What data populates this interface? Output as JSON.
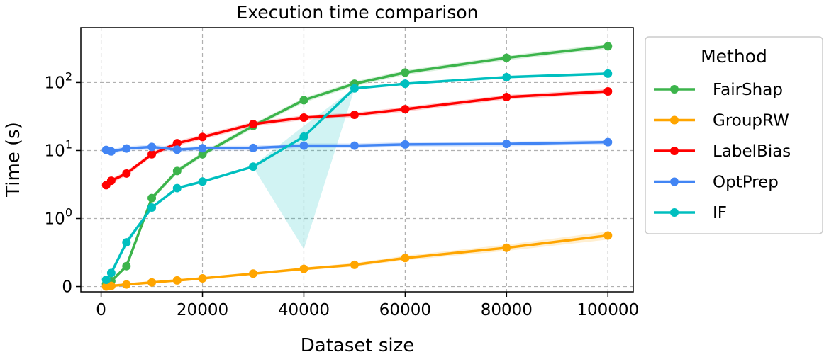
{
  "chart_data": {
    "type": "line",
    "title": "Execution time comparison",
    "xlabel": "Dataset size",
    "ylabel": "Time (s)",
    "xlim": [
      -4000,
      105000
    ],
    "x_ticks": [
      0,
      20000,
      40000,
      60000,
      80000,
      100000
    ],
    "x_tick_labels": [
      "0",
      "20000",
      "40000",
      "60000",
      "80000",
      "100000"
    ],
    "y_scale": "symlog",
    "y_ticks": [
      0,
      1,
      10,
      100
    ],
    "y_tick_labels": [
      {
        "base": "0",
        "exp": ""
      },
      {
        "base": "10",
        "exp": "0"
      },
      {
        "base": "10",
        "exp": "1"
      },
      {
        "base": "10",
        "exp": "2"
      }
    ],
    "grid": true,
    "legend": {
      "title": "Method",
      "placement": "outside-right"
    },
    "series": [
      {
        "name": "FairShap",
        "color": "#3cb44b",
        "x": [
          1000,
          2000,
          5000,
          10000,
          15000,
          20000,
          30000,
          40000,
          50000,
          60000,
          80000,
          100000
        ],
        "y": [
          0.04,
          0.08,
          0.3,
          2.0,
          5.0,
          8.8,
          23,
          55,
          96,
          140,
          230,
          340
        ]
      },
      {
        "name": "GroupRW",
        "color": "#ffa500",
        "x": [
          1000,
          2000,
          5000,
          10000,
          15000,
          20000,
          30000,
          40000,
          50000,
          60000,
          80000,
          100000
        ],
        "y": [
          0.0,
          0.01,
          0.03,
          0.06,
          0.09,
          0.12,
          0.19,
          0.26,
          0.32,
          0.42,
          0.57,
          0.75
        ]
      },
      {
        "name": "LabelBias",
        "color": "#ff0000",
        "x": [
          1000,
          2000,
          5000,
          10000,
          15000,
          20000,
          30000,
          40000,
          50000,
          60000,
          80000,
          100000
        ],
        "y": [
          3.1,
          3.6,
          4.6,
          8.8,
          12.8,
          15.8,
          24.5,
          30.5,
          33.5,
          40.5,
          61,
          74
        ]
      },
      {
        "name": "OptPrep",
        "color": "#4285f4",
        "x": [
          1000,
          2000,
          5000,
          10000,
          15000,
          20000,
          30000,
          40000,
          50000,
          60000,
          80000,
          100000
        ],
        "y": [
          10.2,
          9.7,
          10.7,
          11.3,
          10.3,
          10.8,
          10.9,
          11.8,
          11.8,
          12.3,
          12.5,
          13.3
        ]
      },
      {
        "name": "IF",
        "color": "#00bfbf",
        "x": [
          1000,
          2000,
          5000,
          10000,
          15000,
          20000,
          30000,
          40000,
          50000,
          60000,
          80000,
          100000
        ],
        "y": [
          0.1,
          0.2,
          0.65,
          1.45,
          2.8,
          3.5,
          5.8,
          16,
          82,
          96,
          120,
          135
        ],
        "band_lower": [
          0.09,
          0.18,
          0.6,
          1.4,
          2.7,
          3.4,
          5.7,
          0.55,
          80,
          94,
          115,
          130
        ],
        "band_upper": [
          0.11,
          0.22,
          0.7,
          1.5,
          2.9,
          3.6,
          6.0,
          23,
          84,
          98,
          126,
          140
        ]
      }
    ]
  }
}
